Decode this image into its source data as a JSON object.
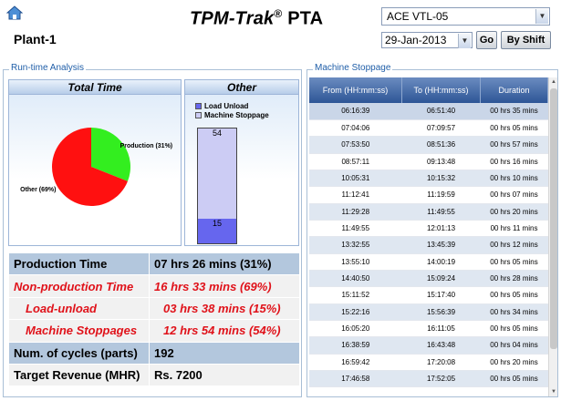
{
  "header": {
    "title_main": "TPM-Trak",
    "title_reg": "®",
    "title_suffix": "PTA",
    "plant": "Plant-1",
    "machine": "ACE VTL-05",
    "date": "29-Jan-2013",
    "go_label": "Go",
    "shift_label": "By Shift",
    "icons": {
      "home": "home-icon",
      "dropdown": "chevron-down-icon"
    }
  },
  "runtime": {
    "legend": "Run-time Analysis",
    "total_title": "Total Time",
    "other_title": "Other",
    "summary": [
      {
        "label": "Production Time",
        "value": "07 hrs 26 mins (31%)",
        "style": "blue"
      },
      {
        "label": "Non-production Time",
        "value": "16 hrs 33 mins (69%)",
        "style": "red"
      },
      {
        "label": "Load-unload",
        "value": "03 hrs 38 mins (15%)",
        "style": "red-indent"
      },
      {
        "label": "Machine Stoppages",
        "value": "12 hrs 54 mins (54%)",
        "style": "red-indent"
      },
      {
        "label": "Num. of cycles (parts)",
        "value": "192",
        "style": "blue"
      },
      {
        "label": "Target Revenue (MHR)",
        "value": "Rs. 7200",
        "style": "white"
      }
    ]
  },
  "chart_data": [
    {
      "type": "pie",
      "title": "Total Time",
      "slices": [
        {
          "label": "Production (31%)",
          "value": 31,
          "color": "#33ee1f"
        },
        {
          "label": "Other (69%)",
          "value": 69,
          "color": "#ff1010"
        }
      ]
    },
    {
      "type": "bar",
      "title": "Other",
      "stacked": true,
      "legend": [
        "Load Unload",
        "Machine Stoppage"
      ],
      "series": [
        {
          "name": "Load Unload",
          "values": [
            15
          ],
          "color": "#6666ee"
        },
        {
          "name": "Machine Stoppage",
          "values": [
            54
          ],
          "color": "#ccccf4"
        }
      ]
    }
  ],
  "stoppage": {
    "legend": "Machine Stoppage",
    "columns": [
      "From (HH:mm:ss)",
      "To (HH:mm:ss)",
      "Duration"
    ],
    "rows": [
      [
        "06:16:39",
        "06:51:40",
        "00 hrs 35 mins"
      ],
      [
        "07:04:06",
        "07:09:57",
        "00 hrs 05 mins"
      ],
      [
        "07:53:50",
        "08:51:36",
        "00 hrs 57 mins"
      ],
      [
        "08:57:11",
        "09:13:48",
        "00 hrs 16 mins"
      ],
      [
        "10:05:31",
        "10:15:32",
        "00 hrs 10 mins"
      ],
      [
        "11:12:41",
        "11:19:59",
        "00 hrs 07 mins"
      ],
      [
        "11:29:28",
        "11:49:55",
        "00 hrs 20 mins"
      ],
      [
        "11:49:55",
        "12:01:13",
        "00 hrs 11 mins"
      ],
      [
        "13:32:55",
        "13:45:39",
        "00 hrs 12 mins"
      ],
      [
        "13:55:10",
        "14:00:19",
        "00 hrs 05 mins"
      ],
      [
        "14:40:50",
        "15:09:24",
        "00 hrs 28 mins"
      ],
      [
        "15:11:52",
        "15:17:40",
        "00 hrs 05 mins"
      ],
      [
        "15:22:16",
        "15:56:39",
        "00 hrs 34 mins"
      ],
      [
        "16:05:20",
        "16:11:05",
        "00 hrs 05 mins"
      ],
      [
        "16:38:59",
        "16:43:48",
        "00 hrs 04 mins"
      ],
      [
        "16:59:42",
        "17:20:08",
        "00 hrs 20 mins"
      ],
      [
        "17:46:58",
        "17:52:05",
        "00 hrs 05 mins"
      ]
    ]
  }
}
